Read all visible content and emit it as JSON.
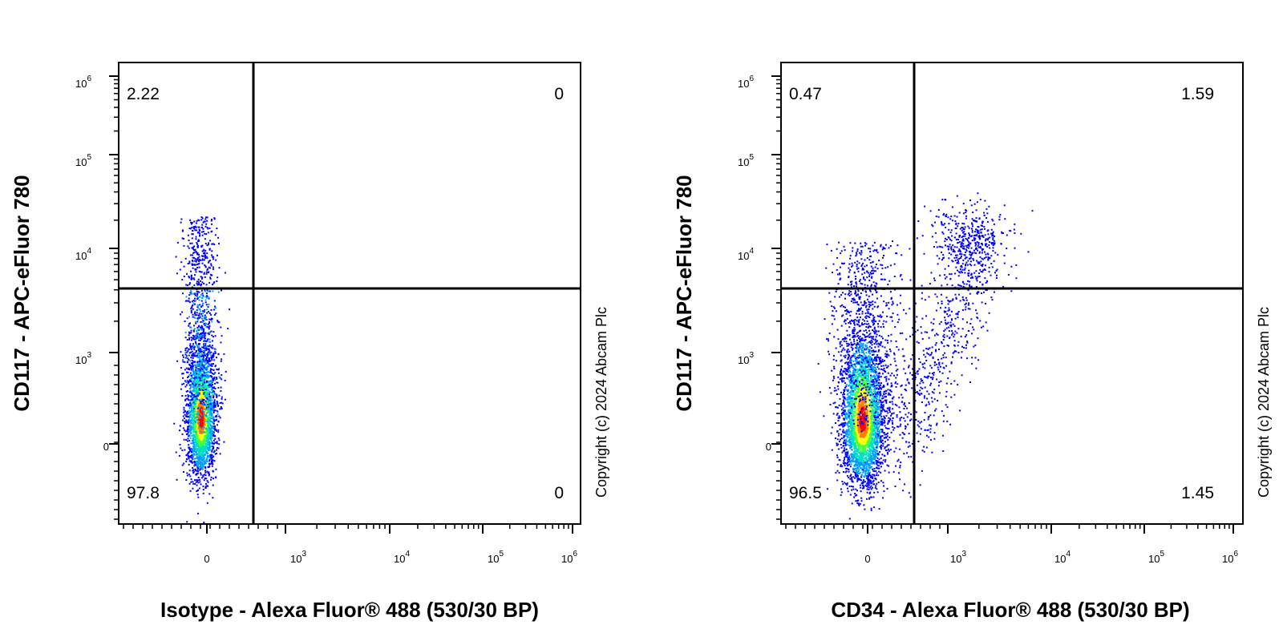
{
  "chart_data": [
    {
      "type": "scatter",
      "subtype": "flow-cytometry-density",
      "xlabel": "Isotype - Alexa Fluor® 488 (530/30 BP)",
      "ylabel": "CD117 - APC-eFluor 780",
      "copyright": "Copyright (c) 2024 Abcam Plc",
      "x_scale": "biexponential",
      "y_scale": "biexponential",
      "x_ticks": [
        {
          "base": "0",
          "exp": ""
        },
        {
          "base": "10",
          "exp": "3"
        },
        {
          "base": "10",
          "exp": "4"
        },
        {
          "base": "10",
          "exp": "5"
        },
        {
          "base": "10",
          "exp": "6"
        }
      ],
      "y_ticks": [
        {
          "base": "0",
          "exp": ""
        },
        {
          "base": "10",
          "exp": "3"
        },
        {
          "base": "10",
          "exp": "4"
        },
        {
          "base": "10",
          "exp": "5"
        },
        {
          "base": "10",
          "exp": "6"
        }
      ],
      "gate_x": 350,
      "gate_y": 4000,
      "quadrants": {
        "upper_left": "2.22",
        "upper_right": "0",
        "lower_left": "97.8",
        "lower_right": "0"
      },
      "populations": [
        {
          "x_center": 0,
          "y_center": 250,
          "density": "high"
        }
      ]
    },
    {
      "type": "scatter",
      "subtype": "flow-cytometry-density",
      "xlabel": "CD34 - Alexa Fluor® 488 (530/30 BP)",
      "ylabel": "CD117 - APC-eFluor 780",
      "copyright": "Copyright (c) 2024 Abcam Plc",
      "x_scale": "biexponential",
      "y_scale": "biexponential",
      "x_ticks": [
        {
          "base": "0",
          "exp": ""
        },
        {
          "base": "10",
          "exp": "3"
        },
        {
          "base": "10",
          "exp": "4"
        },
        {
          "base": "10",
          "exp": "5"
        },
        {
          "base": "10",
          "exp": "6"
        }
      ],
      "y_ticks": [
        {
          "base": "0",
          "exp": ""
        },
        {
          "base": "10",
          "exp": "3"
        },
        {
          "base": "10",
          "exp": "4"
        },
        {
          "base": "10",
          "exp": "5"
        },
        {
          "base": "10",
          "exp": "6"
        }
      ],
      "gate_x": 400,
      "gate_y": 4000,
      "quadrants": {
        "upper_left": "0.47",
        "upper_right": "1.59",
        "lower_left": "96.5",
        "lower_right": "1.45"
      },
      "populations": [
        {
          "x_center": 0,
          "y_center": 250,
          "density": "high"
        },
        {
          "x_center": 1500,
          "y_center": 10000,
          "density": "low"
        }
      ]
    }
  ],
  "density_colors": [
    "#0000ff",
    "#00a0ff",
    "#00e0c0",
    "#40ff40",
    "#ffff00",
    "#ff8000",
    "#ff0000"
  ]
}
